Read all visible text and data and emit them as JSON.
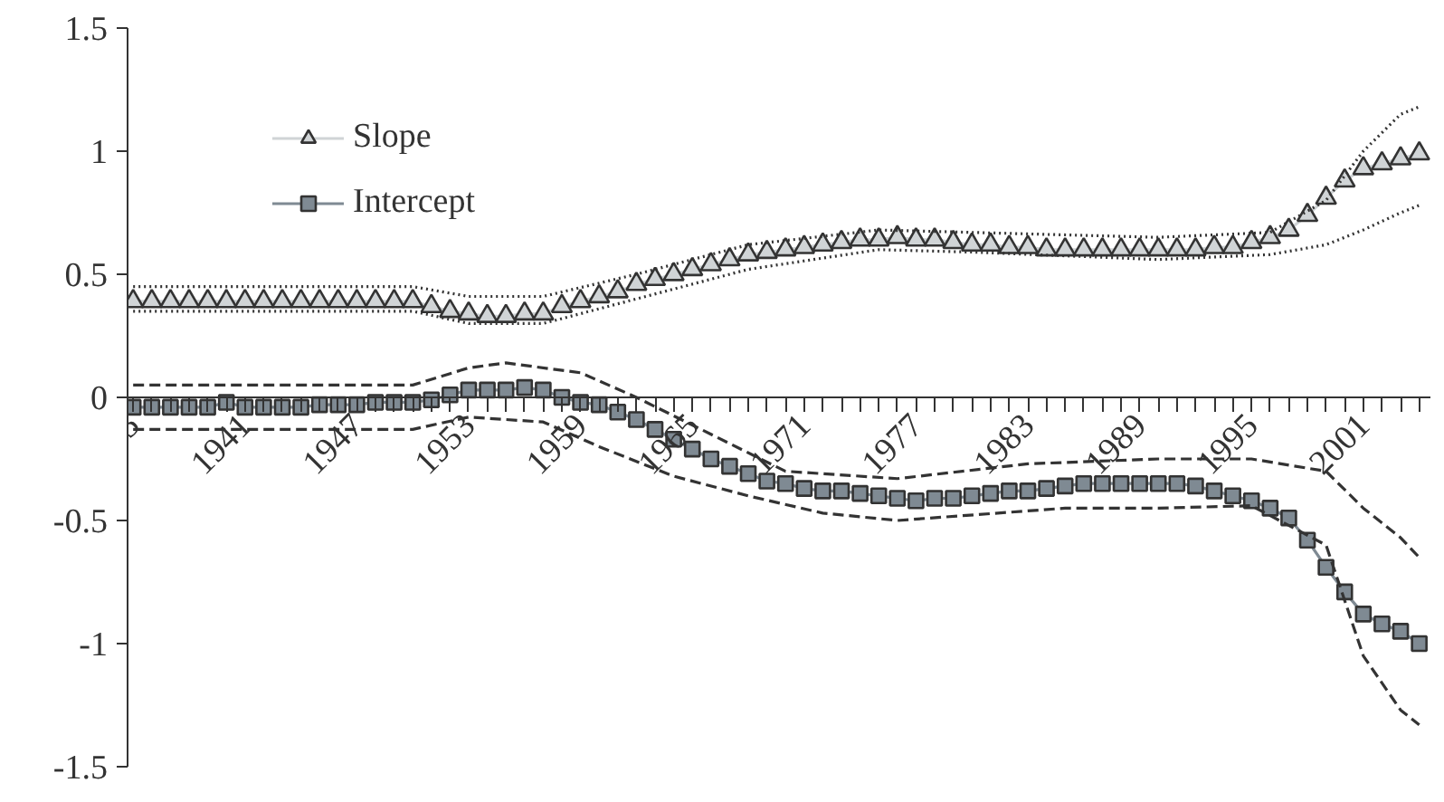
{
  "chart_data": {
    "type": "line",
    "x": [
      1935,
      1936,
      1937,
      1938,
      1939,
      1940,
      1941,
      1942,
      1943,
      1944,
      1945,
      1946,
      1947,
      1948,
      1949,
      1950,
      1951,
      1952,
      1953,
      1954,
      1955,
      1956,
      1957,
      1958,
      1959,
      1960,
      1961,
      1962,
      1963,
      1964,
      1965,
      1966,
      1967,
      1968,
      1969,
      1970,
      1971,
      1972,
      1973,
      1974,
      1975,
      1976,
      1977,
      1978,
      1979,
      1980,
      1981,
      1982,
      1983,
      1984,
      1985,
      1986,
      1987,
      1988,
      1989,
      1990,
      1991,
      1992,
      1993,
      1994,
      1995,
      1996,
      1997,
      1998,
      1999,
      2000,
      2001,
      2002,
      2003,
      2004
    ],
    "xlim": [
      1934.7,
      2004.6
    ],
    "xticks": [
      1935,
      1941,
      1947,
      1953,
      1959,
      1965,
      1971,
      1977,
      1983,
      1989,
      1995,
      2001
    ],
    "ylim": [
      -1.5,
      1.5
    ],
    "yticks": [
      -1.5,
      -1,
      -0.5,
      0,
      0.5,
      1,
      1.5
    ],
    "legend": "top left",
    "grid": false,
    "series": [
      {
        "name": "Slope",
        "color": "#d0d4d6",
        "marker": "triangle",
        "line_style": "solid",
        "values": [
          0.39,
          0.39,
          0.39,
          0.39,
          0.39,
          0.39,
          0.39,
          0.39,
          0.39,
          0.39,
          0.39,
          0.39,
          0.39,
          0.39,
          0.39,
          0.39,
          0.37,
          0.35,
          0.34,
          0.33,
          0.33,
          0.34,
          0.34,
          0.37,
          0.39,
          0.41,
          0.43,
          0.46,
          0.48,
          0.5,
          0.52,
          0.54,
          0.56,
          0.58,
          0.59,
          0.6,
          0.61,
          0.62,
          0.63,
          0.64,
          0.64,
          0.65,
          0.64,
          0.64,
          0.63,
          0.62,
          0.62,
          0.61,
          0.61,
          0.6,
          0.6,
          0.6,
          0.6,
          0.6,
          0.6,
          0.6,
          0.6,
          0.6,
          0.61,
          0.61,
          0.63,
          0.65,
          0.68,
          0.74,
          0.81,
          0.88,
          0.93,
          0.95,
          0.97,
          0.99
        ]
      },
      {
        "name": "Intercept",
        "color": "#7f8a93",
        "marker": "square",
        "line_style": "solid",
        "values": [
          -0.04,
          -0.04,
          -0.04,
          -0.04,
          -0.04,
          -0.02,
          -0.04,
          -0.04,
          -0.04,
          -0.04,
          -0.03,
          -0.03,
          -0.03,
          -0.02,
          -0.02,
          -0.02,
          -0.01,
          0.01,
          0.03,
          0.03,
          0.03,
          0.04,
          0.03,
          0.0,
          -0.02,
          -0.03,
          -0.06,
          -0.09,
          -0.13,
          -0.17,
          -0.21,
          -0.25,
          -0.28,
          -0.31,
          -0.34,
          -0.35,
          -0.37,
          -0.38,
          -0.38,
          -0.39,
          -0.4,
          -0.41,
          -0.42,
          -0.41,
          -0.41,
          -0.4,
          -0.39,
          -0.38,
          -0.38,
          -0.37,
          -0.36,
          -0.35,
          -0.35,
          -0.35,
          -0.35,
          -0.35,
          -0.35,
          -0.36,
          -0.38,
          -0.4,
          -0.42,
          -0.45,
          -0.49,
          -0.58,
          -0.69,
          -0.79,
          -0.88,
          -0.92,
          -0.95,
          -1.0
        ]
      },
      {
        "color": "#333333",
        "marker": "none",
        "line_style": "dotted",
        "x": [
          1935,
          1950,
          1953,
          1957,
          1962,
          1968,
          1975,
          1980,
          1990,
          1996,
          1999,
          2001,
          2003,
          2004
        ],
        "values": [
          0.45,
          0.45,
          0.41,
          0.41,
          0.5,
          0.62,
          0.68,
          0.67,
          0.65,
          0.67,
          0.8,
          1.0,
          1.15,
          1.18
        ]
      },
      {
        "color": "#333333",
        "marker": "none",
        "line_style": "dotted",
        "x": [
          1935,
          1950,
          1953,
          1957,
          1962,
          1968,
          1975,
          1980,
          1990,
          1996,
          1999,
          2001,
          2003,
          2004
        ],
        "values": [
          0.35,
          0.35,
          0.3,
          0.3,
          0.4,
          0.52,
          0.6,
          0.59,
          0.56,
          0.58,
          0.62,
          0.68,
          0.75,
          0.78
        ]
      },
      {
        "color": "#333333",
        "marker": "none",
        "line_style": "dashed",
        "x": [
          1935,
          1950,
          1953,
          1955,
          1959,
          1962,
          1966,
          1970,
          1976,
          1983,
          1990,
          1995,
          1999,
          2001,
          2003,
          2004
        ],
        "values": [
          0.05,
          0.05,
          0.12,
          0.14,
          0.1,
          0.0,
          -0.15,
          -0.3,
          -0.33,
          -0.27,
          -0.25,
          -0.25,
          -0.3,
          -0.45,
          -0.57,
          -0.65
        ]
      },
      {
        "color": "#333333",
        "marker": "none",
        "line_style": "dashed",
        "x": [
          1935,
          1950,
          1953,
          1957,
          1960,
          1964,
          1968,
          1972,
          1976,
          1985,
          1990,
          1995,
          1999,
          2001,
          2003,
          2004
        ],
        "values": [
          -0.13,
          -0.13,
          -0.08,
          -0.1,
          -0.2,
          -0.32,
          -0.4,
          -0.47,
          -0.5,
          -0.45,
          -0.45,
          -0.44,
          -0.6,
          -1.05,
          -1.27,
          -1.33
        ]
      }
    ]
  }
}
